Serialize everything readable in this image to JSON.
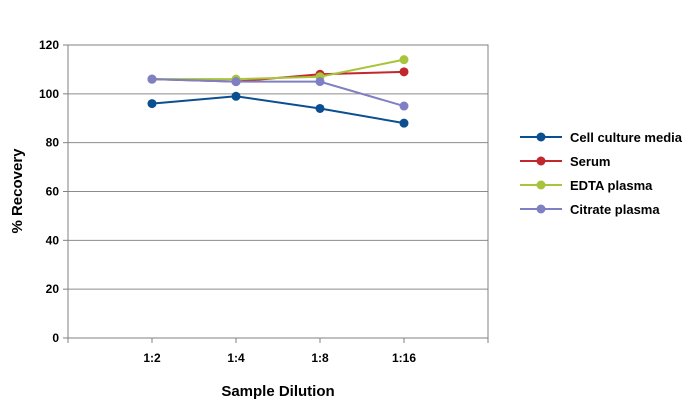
{
  "chart_data": {
    "type": "line",
    "xlabel": "Sample Dilution",
    "ylabel": "% Recovery",
    "categories": [
      "1:2",
      "1:4",
      "1:8",
      "1:16"
    ],
    "ylim": [
      0,
      120
    ],
    "yticks": [
      0,
      20,
      40,
      60,
      80,
      100,
      120
    ],
    "grid": "horizontal",
    "legend_position": "right",
    "series": [
      {
        "name": "Cell culture media",
        "color": "#0b4f91",
        "values": [
          96,
          99,
          94,
          88
        ]
      },
      {
        "name": "Serum",
        "color": "#c0282d",
        "values": [
          106,
          105,
          108,
          109
        ]
      },
      {
        "name": "EDTA plasma",
        "color": "#a8c43a",
        "values": [
          106,
          106,
          107,
          114
        ]
      },
      {
        "name": "Citrate plasma",
        "color": "#7f7fc4",
        "values": [
          106,
          105,
          105,
          95
        ]
      }
    ]
  }
}
